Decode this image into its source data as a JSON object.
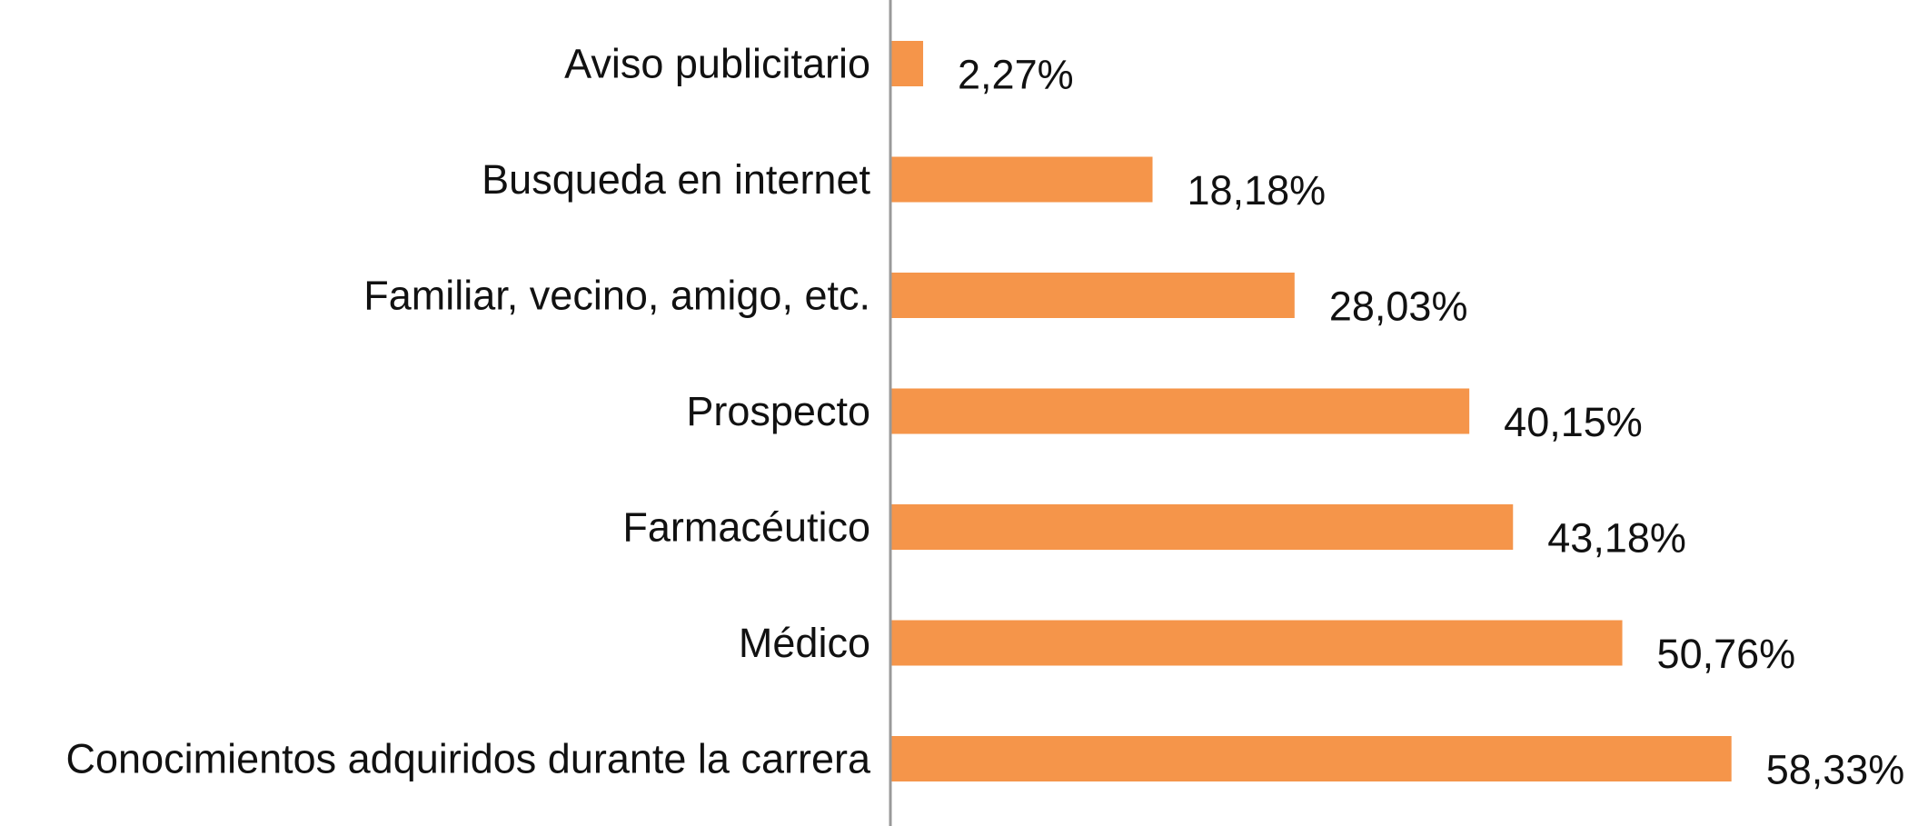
{
  "chart_data": {
    "type": "bar",
    "orientation": "horizontal",
    "categories": [
      "Aviso publicitario",
      "Busqueda en internet",
      "Familiar, vecino, amigo, etc.",
      "Prospecto",
      "Farmacéutico",
      "Médico",
      "Conocimientos adquiridos durante la carrera"
    ],
    "values": [
      2.27,
      18.18,
      28.03,
      40.15,
      43.18,
      50.76,
      58.33
    ],
    "value_labels": [
      "2,27%",
      "18,18%",
      "28,03%",
      "40,15%",
      "43,18%",
      "50,76%",
      "58,33%"
    ],
    "xlim": [
      0,
      60
    ],
    "grid": false,
    "legend": "none",
    "bar_color": "#F5954A",
    "axis_color": "#999999"
  }
}
